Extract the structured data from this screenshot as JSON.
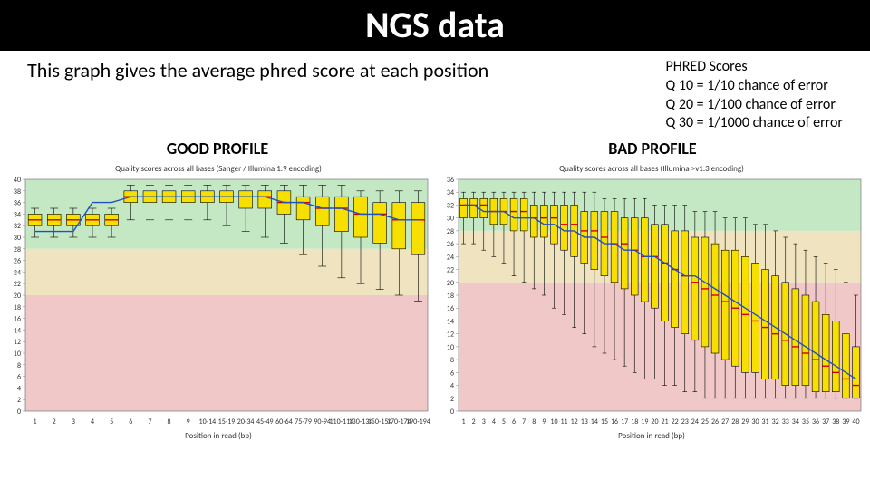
{
  "title": "NGS data",
  "intro": "This graph gives the average phred score at each position",
  "phred_block": {
    "heading": "PHRED Scores",
    "l1": "Q 10 = 1/10 chance of error",
    "l2": "Q 20 = 1/100 chance of error",
    "l3": "Q 30 = 1/1000 chance of error"
  },
  "good_label": "GOOD PROFILE",
  "bad_label": "BAD PROFILE",
  "zone_colors": {
    "green": "#c4e8c4",
    "amber": "#f0e4c0",
    "red": "#f0c8c8"
  },
  "box_style": {
    "fill": "#f7e000",
    "stroke": "#000000",
    "stroke_width": 0.6,
    "whisker_color": "#000000",
    "median_color": "#d40000",
    "median_width": 1.4
  },
  "mean_line": {
    "color": "#2050c0",
    "width": 1.4
  },
  "axis": {
    "tick_color": "#888888"
  },
  "good_chart": {
    "type": "boxplot",
    "title": "Quality scores across all bases (Sanger / Illumina 1.9 encoding)",
    "xlabel": "Position in read (bp)",
    "ylim": [
      0,
      40
    ],
    "ytick_step": 2,
    "zones": {
      "green_min": 28,
      "amber_min": 20
    },
    "x_labels": [
      "1",
      "2",
      "3",
      "4",
      "5",
      "6",
      "7",
      "8",
      "9",
      "10-14",
      "15-19",
      "20-34",
      "45-49",
      "60-64",
      "75-79",
      "90-94",
      "110-114",
      "130-134",
      "150-154",
      "170-174",
      "190-194"
    ],
    "boxes": [
      {
        "q1": 32,
        "med": 33,
        "q3": 34,
        "lo": 30,
        "hi": 35,
        "mean": 31
      },
      {
        "q1": 32,
        "med": 33,
        "q3": 34,
        "lo": 30,
        "hi": 35,
        "mean": 31
      },
      {
        "q1": 32,
        "med": 33,
        "q3": 34,
        "lo": 30,
        "hi": 35,
        "mean": 31
      },
      {
        "q1": 32,
        "med": 33,
        "q3": 34,
        "lo": 30,
        "hi": 35,
        "mean": 36
      },
      {
        "q1": 32,
        "med": 33,
        "q3": 34,
        "lo": 30,
        "hi": 35,
        "mean": 36
      },
      {
        "q1": 36,
        "med": 37,
        "q3": 38,
        "lo": 33,
        "hi": 39,
        "mean": 37
      },
      {
        "q1": 36,
        "med": 37,
        "q3": 38,
        "lo": 33,
        "hi": 39,
        "mean": 37
      },
      {
        "q1": 36,
        "med": 37,
        "q3": 38,
        "lo": 33,
        "hi": 39,
        "mean": 37
      },
      {
        "q1": 36,
        "med": 37,
        "q3": 38,
        "lo": 33,
        "hi": 39,
        "mean": 37
      },
      {
        "q1": 36,
        "med": 37,
        "q3": 38,
        "lo": 33,
        "hi": 39,
        "mean": 37
      },
      {
        "q1": 36,
        "med": 37,
        "q3": 38,
        "lo": 32,
        "hi": 39,
        "mean": 37
      },
      {
        "q1": 35,
        "med": 37,
        "q3": 38,
        "lo": 31,
        "hi": 39,
        "mean": 37
      },
      {
        "q1": 35,
        "med": 37,
        "q3": 38,
        "lo": 30,
        "hi": 39,
        "mean": 37
      },
      {
        "q1": 34,
        "med": 36,
        "q3": 38,
        "lo": 29,
        "hi": 39,
        "mean": 36
      },
      {
        "q1": 33,
        "med": 36,
        "q3": 37,
        "lo": 27,
        "hi": 39,
        "mean": 36
      },
      {
        "q1": 32,
        "med": 35,
        "q3": 37,
        "lo": 25,
        "hi": 39,
        "mean": 35
      },
      {
        "q1": 31,
        "med": 35,
        "q3": 37,
        "lo": 23,
        "hi": 39,
        "mean": 35
      },
      {
        "q1": 30,
        "med": 34,
        "q3": 37,
        "lo": 22,
        "hi": 38,
        "mean": 34
      },
      {
        "q1": 29,
        "med": 34,
        "q3": 36,
        "lo": 21,
        "hi": 38,
        "mean": 34
      },
      {
        "q1": 28,
        "med": 33,
        "q3": 36,
        "lo": 20,
        "hi": 38,
        "mean": 33
      },
      {
        "q1": 27,
        "med": 33,
        "q3": 36,
        "lo": 19,
        "hi": 38,
        "mean": 33
      }
    ]
  },
  "bad_chart": {
    "type": "boxplot",
    "title": "Quality scores across all bases (Illumina >v1.3 encoding)",
    "xlabel": "Position in read (bp)",
    "ylim": [
      0,
      36
    ],
    "ytick_step": 2,
    "zones": {
      "green_min": 28,
      "amber_min": 20
    },
    "x_labels": [
      "1",
      "2",
      "3",
      "4",
      "5",
      "6",
      "7",
      "8",
      "9",
      "10",
      "11",
      "12",
      "13",
      "14",
      "15",
      "16",
      "17",
      "18",
      "19",
      "20",
      "21",
      "22",
      "23",
      "24",
      "25",
      "26",
      "27",
      "28",
      "29",
      "30",
      "31",
      "32",
      "33",
      "34",
      "35",
      "36",
      "37",
      "38",
      "39",
      "40"
    ],
    "boxes": [
      {
        "q1": 30,
        "med": 32,
        "q3": 33,
        "lo": 26,
        "hi": 34,
        "mean": 32
      },
      {
        "q1": 30,
        "med": 32,
        "q3": 33,
        "lo": 26,
        "hi": 34,
        "mean": 32
      },
      {
        "q1": 30,
        "med": 32,
        "q3": 33,
        "lo": 25,
        "hi": 34,
        "mean": 31
      },
      {
        "q1": 29,
        "med": 31,
        "q3": 33,
        "lo": 24,
        "hi": 34,
        "mean": 31
      },
      {
        "q1": 29,
        "med": 31,
        "q3": 33,
        "lo": 23,
        "hi": 34,
        "mean": 31
      },
      {
        "q1": 28,
        "med": 31,
        "q3": 33,
        "lo": 21,
        "hi": 34,
        "mean": 30
      },
      {
        "q1": 28,
        "med": 31,
        "q3": 33,
        "lo": 20,
        "hi": 34,
        "mean": 30
      },
      {
        "q1": 27,
        "med": 30,
        "q3": 32,
        "lo": 19,
        "hi": 34,
        "mean": 30
      },
      {
        "q1": 27,
        "med": 30,
        "q3": 32,
        "lo": 18,
        "hi": 34,
        "mean": 29
      },
      {
        "q1": 26,
        "med": 30,
        "q3": 32,
        "lo": 16,
        "hi": 34,
        "mean": 29
      },
      {
        "q1": 25,
        "med": 29,
        "q3": 32,
        "lo": 15,
        "hi": 34,
        "mean": 28
      },
      {
        "q1": 24,
        "med": 29,
        "q3": 32,
        "lo": 13,
        "hi": 34,
        "mean": 28
      },
      {
        "q1": 23,
        "med": 28,
        "q3": 31,
        "lo": 12,
        "hi": 34,
        "mean": 27
      },
      {
        "q1": 22,
        "med": 28,
        "q3": 31,
        "lo": 10,
        "hi": 34,
        "mean": 27
      },
      {
        "q1": 21,
        "med": 27,
        "q3": 31,
        "lo": 9,
        "hi": 33,
        "mean": 26
      },
      {
        "q1": 20,
        "med": 26,
        "q3": 31,
        "lo": 8,
        "hi": 33,
        "mean": 26
      },
      {
        "q1": 19,
        "med": 26,
        "q3": 30,
        "lo": 7,
        "hi": 33,
        "mean": 25
      },
      {
        "q1": 18,
        "med": 25,
        "q3": 30,
        "lo": 6,
        "hi": 33,
        "mean": 25
      },
      {
        "q1": 17,
        "med": 24,
        "q3": 30,
        "lo": 5,
        "hi": 33,
        "mean": 24
      },
      {
        "q1": 16,
        "med": 24,
        "q3": 29,
        "lo": 5,
        "hi": 32,
        "mean": 24
      },
      {
        "q1": 14,
        "med": 23,
        "q3": 29,
        "lo": 4,
        "hi": 32,
        "mean": 23
      },
      {
        "q1": 13,
        "med": 22,
        "q3": 28,
        "lo": 4,
        "hi": 32,
        "mean": 22
      },
      {
        "q1": 12,
        "med": 21,
        "q3": 28,
        "lo": 3,
        "hi": 32,
        "mean": 21
      },
      {
        "q1": 11,
        "med": 20,
        "q3": 27,
        "lo": 3,
        "hi": 31,
        "mean": 21
      },
      {
        "q1": 10,
        "med": 19,
        "q3": 27,
        "lo": 2,
        "hi": 31,
        "mean": 20
      },
      {
        "q1": 9,
        "med": 18,
        "q3": 26,
        "lo": 2,
        "hi": 31,
        "mean": 19
      },
      {
        "q1": 8,
        "med": 17,
        "q3": 25,
        "lo": 2,
        "hi": 30,
        "mean": 18
      },
      {
        "q1": 7,
        "med": 16,
        "q3": 25,
        "lo": 2,
        "hi": 30,
        "mean": 17
      },
      {
        "q1": 6,
        "med": 15,
        "q3": 24,
        "lo": 2,
        "hi": 30,
        "mean": 16
      },
      {
        "q1": 6,
        "med": 14,
        "q3": 23,
        "lo": 2,
        "hi": 29,
        "mean": 15
      },
      {
        "q1": 5,
        "med": 13,
        "q3": 22,
        "lo": 2,
        "hi": 29,
        "mean": 14
      },
      {
        "q1": 5,
        "med": 12,
        "q3": 21,
        "lo": 2,
        "hi": 28,
        "mean": 13
      },
      {
        "q1": 4,
        "med": 11,
        "q3": 20,
        "lo": 2,
        "hi": 27,
        "mean": 12
      },
      {
        "q1": 4,
        "med": 10,
        "q3": 19,
        "lo": 2,
        "hi": 26,
        "mean": 11
      },
      {
        "q1": 4,
        "med": 9,
        "q3": 18,
        "lo": 2,
        "hi": 25,
        "mean": 10
      },
      {
        "q1": 3,
        "med": 8,
        "q3": 17,
        "lo": 2,
        "hi": 24,
        "mean": 9
      },
      {
        "q1": 3,
        "med": 7,
        "q3": 15,
        "lo": 2,
        "hi": 23,
        "mean": 8
      },
      {
        "q1": 3,
        "med": 6,
        "q3": 14,
        "lo": 2,
        "hi": 22,
        "mean": 7
      },
      {
        "q1": 2,
        "med": 5,
        "q3": 12,
        "lo": 2,
        "hi": 20,
        "mean": 6
      },
      {
        "q1": 2,
        "med": 4,
        "q3": 10,
        "lo": 2,
        "hi": 18,
        "mean": 5
      }
    ]
  }
}
